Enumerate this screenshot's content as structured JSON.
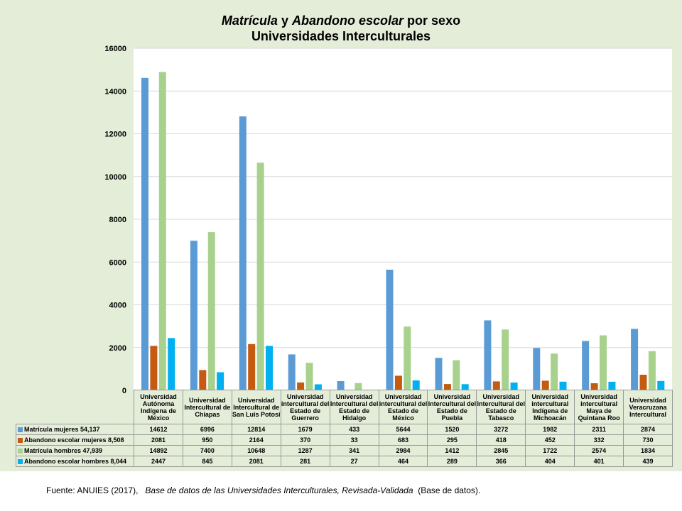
{
  "title": {
    "line1_part1": "Matrícula",
    "line1_part2": "y",
    "line1_part3": "Abandono escolar",
    "line1_part4": "por sexo",
    "line2": "Universidades Interculturales"
  },
  "source": {
    "prefix": "Fuente: ANUIES (2017),",
    "italic": "Base de datos de las Universidades Interculturales, Revisada-Validada",
    "suffix": "(Base de datos)."
  },
  "chart_data": {
    "type": "bar",
    "title": "Matrícula y Abandono escolar por sexo Universidades Interculturales",
    "ylim": [
      0,
      16000
    ],
    "yticks": [
      "0",
      "2000",
      "4000",
      "6000",
      "8000",
      "10000",
      "12000",
      "14000",
      "16000"
    ],
    "grid": true,
    "legend": "data-table",
    "categories": [
      "Universidad Autónoma Indígena de México",
      "Universidad Intercultural de Chiapas",
      "Universidad Intercultural de San Luis Potosí",
      "Universidad intercultural del Estado de Guerrero",
      "Universidad Intercultural del Estado de Hidalgo",
      "Universidad intercultural del Estado de México",
      "Universidad Intercultural del Estado de Puebla",
      "Universidad Intercultural del Estado de Tabasco",
      "Universidad intercultural Indígena de Michoacán",
      "Universidad intercultural Maya de Quintana Roo",
      "Universidad Veracruzana Intercultural"
    ],
    "series": [
      {
        "name": "Matrícula mujeres 54,137",
        "color": "#5b9bd5",
        "values": [
          14612,
          6996,
          12814,
          1679,
          433,
          5644,
          1520,
          3272,
          1982,
          2311,
          2874
        ]
      },
      {
        "name": "Abandono escolar mujeres 8,508",
        "color": "#c55a11",
        "values": [
          2081,
          950,
          2164,
          370,
          33,
          683,
          295,
          418,
          452,
          332,
          730
        ]
      },
      {
        "name": "Matrícula hombres 47,939",
        "color": "#a9d18e",
        "values": [
          14892,
          7400,
          10648,
          1287,
          341,
          2984,
          1412,
          2845,
          1722,
          2574,
          1834
        ]
      },
      {
        "name": "Abandono escolar hombres 8,044",
        "color": "#00b0f0",
        "values": [
          2447,
          845,
          2081,
          281,
          27,
          464,
          289,
          366,
          404,
          401,
          439
        ]
      }
    ]
  }
}
